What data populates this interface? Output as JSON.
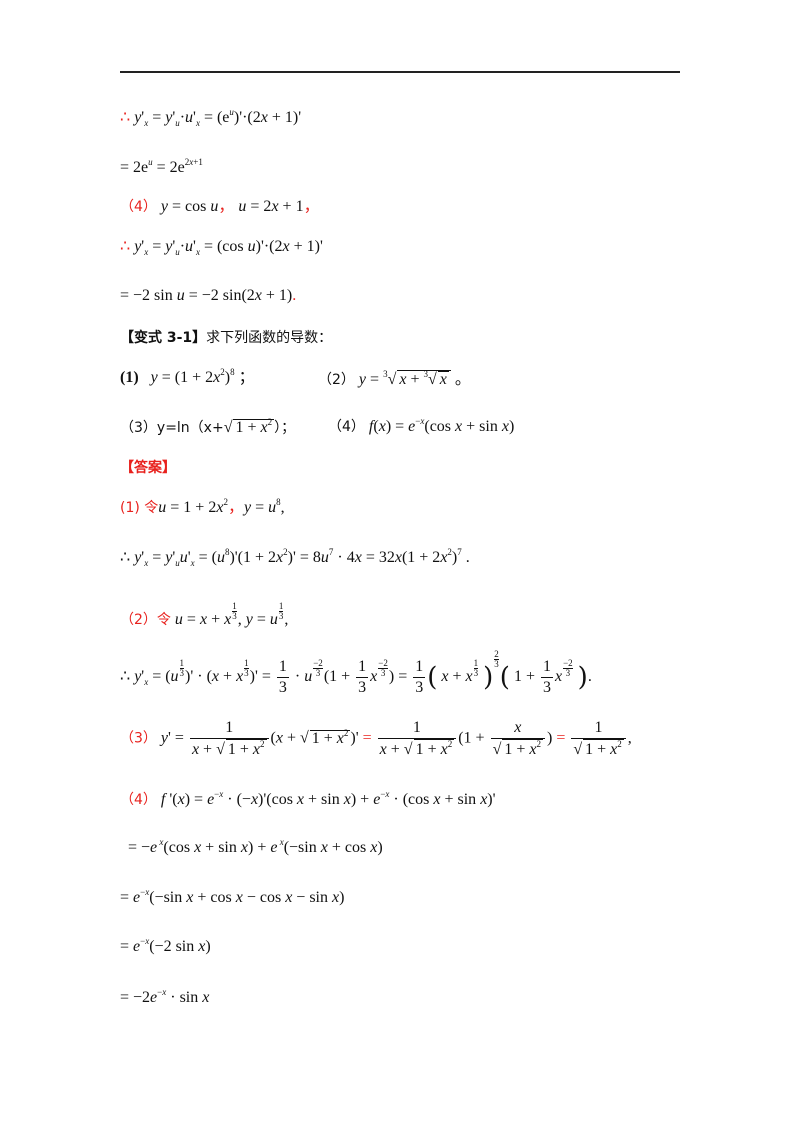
{
  "header": {
    "rule": true
  },
  "lines": {
    "l1_therefore": "∴",
    "l1_math": "y'ₓ = y'ᵤ·u'ₓ = (eᵘ)'·(2x+1)'",
    "l2_math": "= 2eᵘ = 2e^(2x+1)",
    "l3_label": "（4）",
    "l3_math": "y = cos u ， u = 2x + 1 ，",
    "l4_therefore": "∴",
    "l4_math": "y'ₓ = y'ᵤ·u'ₓ = (cos u)'·(2x+1)'",
    "l5_math": "= −2 sin u = −2 sin(2x+1)",
    "l5_period": "."
  },
  "variant": {
    "heading_label": "【变式 3-1】",
    "heading_text": "求下列函数的导数：",
    "p1_label": "(1)",
    "p1_math": "y = (1+2x²)⁸ ；",
    "p2_label": "（2）",
    "p2_math": "y = ∛(x+∛x) 。",
    "p3_text": "（3）y=ln（x+√(1+x²)）；",
    "p4_label": "（4）",
    "p4_math": "f(x) = e^(−x)(cos x + sin x)"
  },
  "answer": {
    "heading": "【答案】",
    "a1_label": "(1) 令",
    "a1_math": "u = 1+2x² , y = u⁸ ,",
    "a1_deriv": "∴ y'ₓ = y'ᵤu'ₓ = (u⁸)'(1+2x²)' = 8u⁷·4x = 32x(1+2x²)⁷ .",
    "a2_label": "（2）令",
    "a2_math": "u = x + x^(1/3) , y = u^(1/3) ,",
    "a2_deriv": "∴ y'ₓ = (u^(1/3))'·(x+x^(1/3))' = (1/3)·u^(−2/3)(1+(1/3)x^(−2/3)) = (1/3)(x+x^(1/3))^(−2/3)(1+(1/3)x^(−2/3)) .",
    "a3_label": "（3）",
    "a3_math": "y' = 1/(x+√(1+x²)) (x+√(1+x²))' = 1/(x+√(1+x²)) (1 + x/√(1+x²)) = 1/√(1+x²) ,",
    "a4_label": "（4）",
    "a4_math": "f '(x) = e^(−x)·(−x)'(cos x + sin x) + e^(−x)·(cos x + sin x)'",
    "a5_math": "= −e^(−x)(cos x + sin x) + e^(−x)(−sin x + cos x)",
    "a6_math": "= e^(−x)(−sin x + cos x − cos x − sin x)",
    "a7_math": "= e^(−x)(−2 sin x)",
    "a8_math": "= −2e^(−x)·sin x"
  }
}
